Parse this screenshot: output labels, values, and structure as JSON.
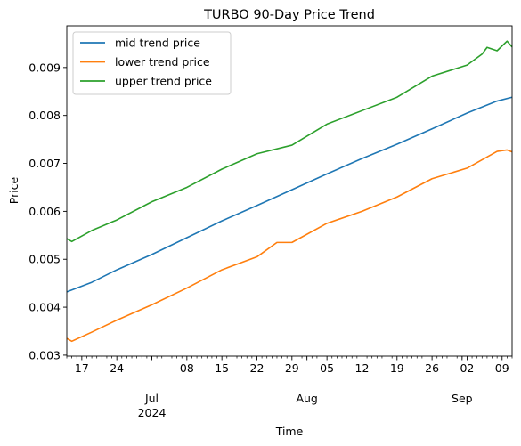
{
  "chart_data": {
    "type": "line",
    "title": "TURBO 90-Day Price Trend",
    "xlabel": "Time",
    "ylabel": "Price",
    "xlim": [
      "2024-06-14",
      "2024-09-11"
    ],
    "ylim": [
      0.00298,
      0.00987
    ],
    "y_ticks": [
      {
        "value": 0.003,
        "label": "0.003"
      },
      {
        "value": 0.004,
        "label": "0.004"
      },
      {
        "value": 0.005,
        "label": "0.005"
      },
      {
        "value": 0.006,
        "label": "0.006"
      },
      {
        "value": 0.007,
        "label": "0.007"
      },
      {
        "value": 0.008,
        "label": "0.008"
      },
      {
        "value": 0.009,
        "label": "0.009"
      }
    ],
    "x_major_ticks": [
      {
        "date": "2024-06-17",
        "label": "17"
      },
      {
        "date": "2024-06-24",
        "label": "24"
      },
      {
        "date": "2024-07-08",
        "label": "08"
      },
      {
        "date": "2024-07-15",
        "label": "15"
      },
      {
        "date": "2024-07-22",
        "label": "22"
      },
      {
        "date": "2024-07-29",
        "label": "29"
      },
      {
        "date": "2024-08-05",
        "label": "05"
      },
      {
        "date": "2024-08-12",
        "label": "12"
      },
      {
        "date": "2024-08-19",
        "label": "19"
      },
      {
        "date": "2024-08-26",
        "label": "26"
      },
      {
        "date": "2024-09-02",
        "label": "02"
      },
      {
        "date": "2024-09-09",
        "label": "09"
      }
    ],
    "x_month_labels": [
      {
        "date": "2024-07-01",
        "label": "Jul",
        "sublabel": "2024"
      },
      {
        "date": "2024-08-01",
        "label": "Aug",
        "sublabel": ""
      },
      {
        "date": "2024-09-01",
        "label": "Sep",
        "sublabel": ""
      }
    ],
    "legend_position": "upper-left",
    "grid": false,
    "series": [
      {
        "name": "mid trend price",
        "color": "#1f77b4",
        "points": [
          [
            "2024-06-14",
            0.00432
          ],
          [
            "2024-06-19",
            0.00452
          ],
          [
            "2024-06-24",
            0.00478
          ],
          [
            "2024-07-01",
            0.0051
          ],
          [
            "2024-07-08",
            0.00545
          ],
          [
            "2024-07-15",
            0.0058
          ],
          [
            "2024-07-22",
            0.00612
          ],
          [
            "2024-07-29",
            0.00645
          ],
          [
            "2024-08-05",
            0.00678
          ],
          [
            "2024-08-12",
            0.0071
          ],
          [
            "2024-08-19",
            0.0074
          ],
          [
            "2024-08-26",
            0.00772
          ],
          [
            "2024-09-02",
            0.00805
          ],
          [
            "2024-09-08",
            0.0083
          ],
          [
            "2024-09-11",
            0.00838
          ]
        ]
      },
      {
        "name": "lower trend price",
        "color": "#ff7f0e",
        "points": [
          [
            "2024-06-14",
            0.00335
          ],
          [
            "2024-06-15",
            0.00329
          ],
          [
            "2024-06-19",
            0.00348
          ],
          [
            "2024-06-24",
            0.00373
          ],
          [
            "2024-07-01",
            0.00405
          ],
          [
            "2024-07-08",
            0.0044
          ],
          [
            "2024-07-15",
            0.00478
          ],
          [
            "2024-07-22",
            0.00505
          ],
          [
            "2024-07-26",
            0.00535
          ],
          [
            "2024-07-29",
            0.00535
          ],
          [
            "2024-08-05",
            0.00575
          ],
          [
            "2024-08-12",
            0.006
          ],
          [
            "2024-08-19",
            0.0063
          ],
          [
            "2024-08-26",
            0.00668
          ],
          [
            "2024-09-02",
            0.0069
          ],
          [
            "2024-09-08",
            0.00725
          ],
          [
            "2024-09-10",
            0.00728
          ],
          [
            "2024-09-11",
            0.00724
          ]
        ]
      },
      {
        "name": "upper trend price",
        "color": "#2ca02c",
        "points": [
          [
            "2024-06-14",
            0.00543
          ],
          [
            "2024-06-15",
            0.00537
          ],
          [
            "2024-06-19",
            0.0056
          ],
          [
            "2024-06-24",
            0.00582
          ],
          [
            "2024-07-01",
            0.0062
          ],
          [
            "2024-07-08",
            0.0065
          ],
          [
            "2024-07-15",
            0.00688
          ],
          [
            "2024-07-22",
            0.0072
          ],
          [
            "2024-07-29",
            0.00738
          ],
          [
            "2024-08-05",
            0.00782
          ],
          [
            "2024-08-12",
            0.0081
          ],
          [
            "2024-08-19",
            0.00838
          ],
          [
            "2024-08-26",
            0.00882
          ],
          [
            "2024-09-02",
            0.00905
          ],
          [
            "2024-09-05",
            0.00928
          ],
          [
            "2024-09-06",
            0.00942
          ],
          [
            "2024-09-08",
            0.00935
          ],
          [
            "2024-09-10",
            0.00955
          ],
          [
            "2024-09-11",
            0.00943
          ]
        ]
      }
    ]
  }
}
